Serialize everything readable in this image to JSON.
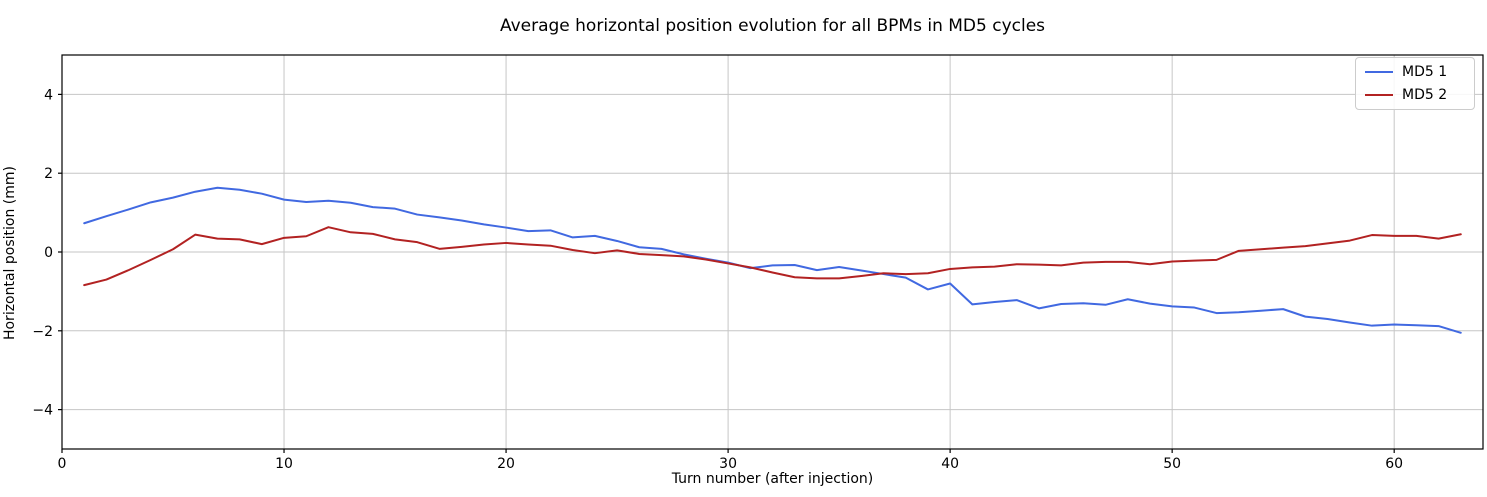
{
  "chart_data": {
    "type": "line",
    "title": "Average horizontal position evolution for all BPMs in MD5 cycles",
    "xlabel": "Turn number (after injection)",
    "ylabel": "Horizontal position (mm)",
    "xlim": [
      0,
      64
    ],
    "ylim": [
      -5,
      5
    ],
    "x_ticks": [
      0,
      10,
      20,
      30,
      40,
      50,
      60
    ],
    "x_tick_labels": [
      "0",
      "10",
      "20",
      "30",
      "40",
      "50",
      "60"
    ],
    "y_ticks": [
      -4,
      -2,
      0,
      2,
      4
    ],
    "y_tick_labels": [
      "−4",
      "−2",
      "0",
      "2",
      "4"
    ],
    "grid": true,
    "grid_color": "#c6c6c6",
    "spine_color": "#000000",
    "legend_position": "upper right",
    "x": [
      1,
      2,
      3,
      4,
      5,
      6,
      7,
      8,
      9,
      10,
      11,
      12,
      13,
      14,
      15,
      16,
      17,
      18,
      19,
      20,
      21,
      22,
      23,
      24,
      25,
      26,
      27,
      28,
      29,
      30,
      31,
      32,
      33,
      34,
      35,
      36,
      37,
      38,
      39,
      40,
      41,
      42,
      43,
      44,
      45,
      46,
      47,
      48,
      49,
      50,
      51,
      52,
      53,
      54,
      55,
      56,
      57,
      58,
      59,
      60,
      61,
      62,
      63
    ],
    "series": [
      {
        "name": "MD5 1",
        "color": "#4169e1",
        "values": [
          0.73,
          0.91,
          1.08,
          1.26,
          1.38,
          1.53,
          1.63,
          1.58,
          1.48,
          1.33,
          1.27,
          1.3,
          1.25,
          1.14,
          1.1,
          0.95,
          0.88,
          0.8,
          0.7,
          0.62,
          0.53,
          0.55,
          0.37,
          0.41,
          0.28,
          0.12,
          0.08,
          -0.06,
          -0.17,
          -0.27,
          -0.41,
          -0.34,
          -0.33,
          -0.46,
          -0.38,
          -0.47,
          -0.56,
          -0.65,
          -0.95,
          -0.8,
          -1.33,
          -1.27,
          -1.22,
          -1.43,
          -1.32,
          -1.3,
          -1.34,
          -1.2,
          -1.31,
          -1.38,
          -1.41,
          -1.55,
          -1.53,
          -1.49,
          -1.45,
          -1.64,
          -1.7,
          -1.79,
          -1.87,
          -1.84,
          -1.86,
          -1.88,
          -2.05
        ]
      },
      {
        "name": "MD5 2",
        "color": "#b22222",
        "values": [
          -0.84,
          -0.7,
          -0.46,
          -0.2,
          0.07,
          0.44,
          0.34,
          0.32,
          0.2,
          0.36,
          0.4,
          0.63,
          0.5,
          0.46,
          0.32,
          0.25,
          0.08,
          0.13,
          0.19,
          0.23,
          0.19,
          0.16,
          0.05,
          -0.03,
          0.04,
          -0.05,
          -0.08,
          -0.11,
          -0.19,
          -0.29,
          -0.39,
          -0.52,
          -0.64,
          -0.67,
          -0.67,
          -0.61,
          -0.54,
          -0.56,
          -0.54,
          -0.43,
          -0.39,
          -0.37,
          -0.31,
          -0.32,
          -0.34,
          -0.27,
          -0.25,
          -0.25,
          -0.31,
          -0.24,
          -0.22,
          -0.2,
          0.03,
          0.07,
          0.11,
          0.15,
          0.22,
          0.29,
          0.43,
          0.41,
          0.41,
          0.34,
          0.45
        ]
      }
    ]
  }
}
